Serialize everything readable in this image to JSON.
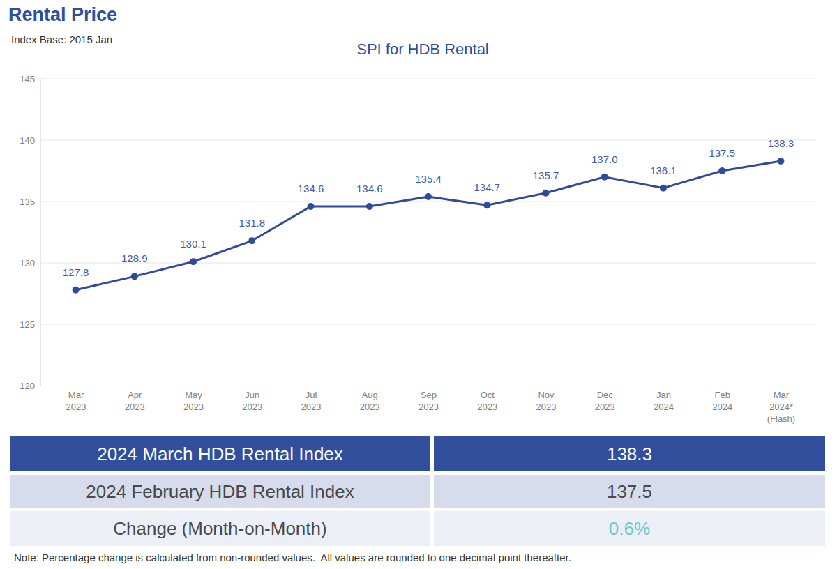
{
  "header": {
    "title": "Rental Price",
    "subtitle": "Index Base: 2015 Jan"
  },
  "chart_data": {
    "type": "line",
    "title": "SPI for HDB Rental",
    "categories": [
      "Mar 2023",
      "Apr 2023",
      "May 2023",
      "Jun 2023",
      "Jul 2023",
      "Aug 2023",
      "Sep 2023",
      "Oct 2023",
      "Nov 2023",
      "Dec 2023",
      "Jan 2024",
      "Feb 2024",
      "Mar 2024* (Flash)"
    ],
    "values": [
      127.8,
      128.9,
      130.1,
      131.8,
      134.6,
      134.6,
      135.4,
      134.7,
      135.7,
      137.0,
      136.1,
      137.5,
      138.3
    ],
    "value_labels": [
      "127.8",
      "128.9",
      "130.1",
      "131.8",
      "134.6",
      "134.6",
      "135.4",
      "134.7",
      "135.7",
      "137.0",
      "136.1",
      "137.5",
      "138.3"
    ],
    "color": "#2f4a9c",
    "marker": "circle",
    "data_labels": true,
    "grid": true,
    "ylim": [
      120,
      145
    ],
    "yticks": [
      120,
      125,
      130,
      135,
      140,
      145
    ]
  },
  "table": {
    "rows": [
      [
        "2024 March HDB Rental Index",
        "138.3"
      ],
      [
        "2024 February HDB Rental Index",
        "137.5"
      ],
      [
        "Change (Month-on-Month)",
        "0.6%"
      ]
    ]
  },
  "note": "Note: Percentage change is calculated from non-rounded values.  All values are rounded to one decimal point thereafter."
}
